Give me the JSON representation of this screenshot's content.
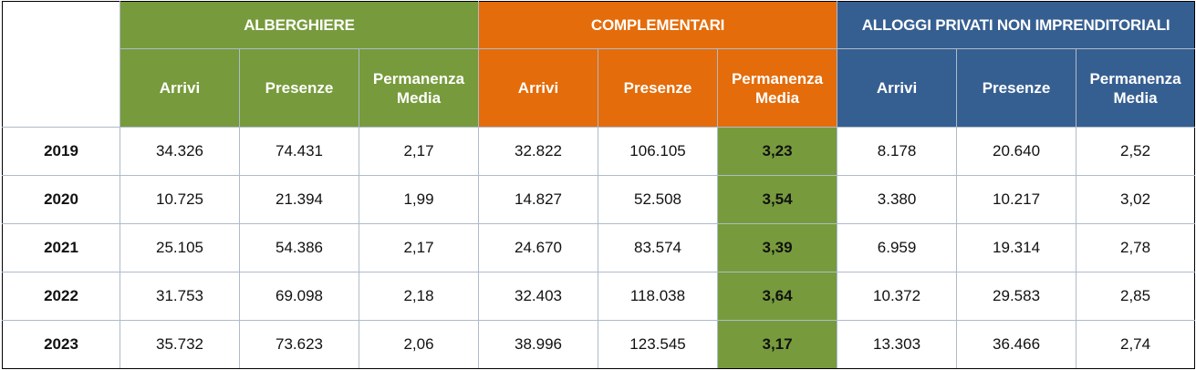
{
  "groups": {
    "alberghiere": "ALBERGHIERE",
    "complementari": "COMPLEMENTARI",
    "alloggi": "ALLOGGI PRIVATI NON IMPRENDITORIALI"
  },
  "columns": {
    "arrivi": "Arrivi",
    "presenze": "Presenze",
    "permanenza_line1": "Permanenza",
    "permanenza_line2": "Media"
  },
  "colors": {
    "alberghiere": "#779b3c",
    "complementari": "#e46c0a",
    "alloggi": "#365f91",
    "highlight": "#779b3c"
  },
  "rows": [
    {
      "year": "2019",
      "alb": [
        "34.326",
        "74.431",
        "2,17"
      ],
      "com": [
        "32.822",
        "106.105",
        "3,23"
      ],
      "all": [
        "8.178",
        "20.640",
        "2,52"
      ]
    },
    {
      "year": "2020",
      "alb": [
        "10.725",
        "21.394",
        "1,99"
      ],
      "com": [
        "14.827",
        "52.508",
        "3,54"
      ],
      "all": [
        "3.380",
        "10.217",
        "3,02"
      ]
    },
    {
      "year": "2021",
      "alb": [
        "25.105",
        "54.386",
        "2,17"
      ],
      "com": [
        "24.670",
        "83.574",
        "3,39"
      ],
      "all": [
        "6.959",
        "19.314",
        "2,78"
      ]
    },
    {
      "year": "2022",
      "alb": [
        "31.753",
        "69.098",
        "2,18"
      ],
      "com": [
        "32.403",
        "118.038",
        "3,64"
      ],
      "all": [
        "10.372",
        "29.583",
        "2,85"
      ]
    },
    {
      "year": "2023",
      "alb": [
        "35.732",
        "73.623",
        "2,06"
      ],
      "com": [
        "38.996",
        "123.545",
        "3,17"
      ],
      "all": [
        "13.303",
        "36.466",
        "2,74"
      ]
    }
  ]
}
